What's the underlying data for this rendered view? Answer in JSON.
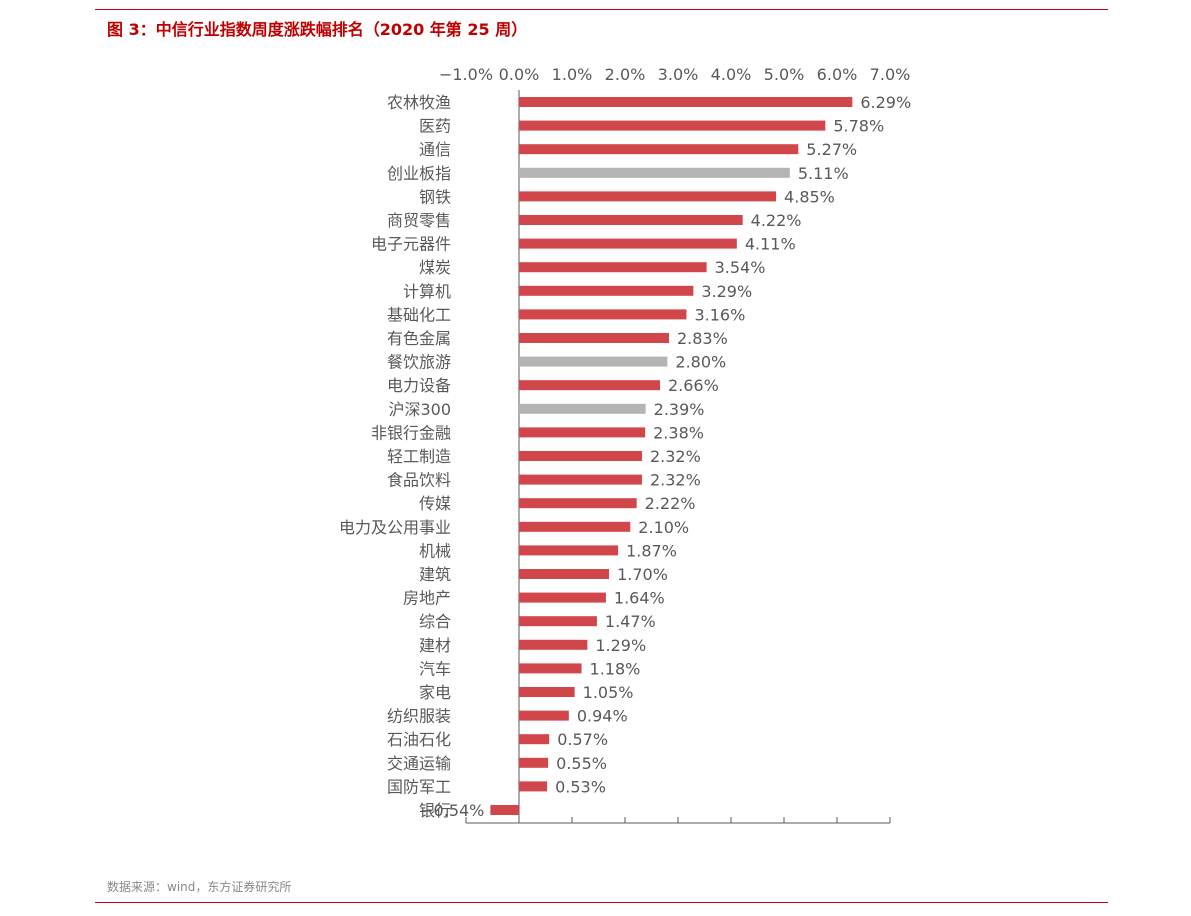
{
  "title": "图 3：中信行业指数周度涨跌幅排名（2020 年第 25 周）",
  "source": "数据来源：wind，东方证券研究所",
  "colors": {
    "highlight": "#d0464b",
    "index": "#b4b4b4",
    "title": "#c00000",
    "axis": "#595959"
  },
  "chart_data": {
    "type": "bar",
    "orientation": "horizontal",
    "title": "图 3：中信行业指数周度涨跌幅排名（2020 年第 25 周）",
    "xlabel": "",
    "ylabel": "",
    "xlim": [
      -1.0,
      7.0
    ],
    "xticks": [
      -1.0,
      0.0,
      1.0,
      2.0,
      3.0,
      4.0,
      5.0,
      6.0,
      7.0
    ],
    "xtick_labels": [
      "−1.0%",
      "0.0%",
      "1.0%",
      "2.0%",
      "3.0%",
      "4.0%",
      "5.0%",
      "6.0%",
      "7.0%"
    ],
    "x_axis_position": "top",
    "grid": false,
    "categories": [
      "农林牧渔",
      "医药",
      "通信",
      "创业板指",
      "钢铁",
      "商贸零售",
      "电子元器件",
      "煤炭",
      "计算机",
      "基础化工",
      "有色金属",
      "餐饮旅游",
      "电力设备",
      "沪深300",
      "非银行金融",
      "轻工制造",
      "食品饮料",
      "传媒",
      "电力及公用事业",
      "机械",
      "建筑",
      "房地产",
      "综合",
      "建材",
      "汽车",
      "家电",
      "纺织服装",
      "石油石化",
      "交通运输",
      "国防军工",
      "银行"
    ],
    "values": [
      6.29,
      5.78,
      5.27,
      5.11,
      4.85,
      4.22,
      4.11,
      3.54,
      3.29,
      3.16,
      2.83,
      2.8,
      2.66,
      2.39,
      2.38,
      2.32,
      2.32,
      2.22,
      2.1,
      1.87,
      1.7,
      1.64,
      1.47,
      1.29,
      1.18,
      1.05,
      0.94,
      0.57,
      0.55,
      0.53,
      -0.54
    ],
    "value_labels": [
      "6.29%",
      "5.78%",
      "5.27%",
      "5.11%",
      "4.85%",
      "4.22%",
      "4.11%",
      "3.54%",
      "3.29%",
      "3.16%",
      "2.83%",
      "2.80%",
      "2.66%",
      "2.39%",
      "2.38%",
      "2.32%",
      "2.32%",
      "2.22%",
      "2.10%",
      "1.87%",
      "1.70%",
      "1.64%",
      "1.47%",
      "1.29%",
      "1.18%",
      "1.05%",
      "0.94%",
      "0.57%",
      "0.55%",
      "0.53%",
      "−0.54%"
    ],
    "highlighted_index_bars": [
      "创业板指",
      "餐饮旅游",
      "沪深300"
    ]
  }
}
